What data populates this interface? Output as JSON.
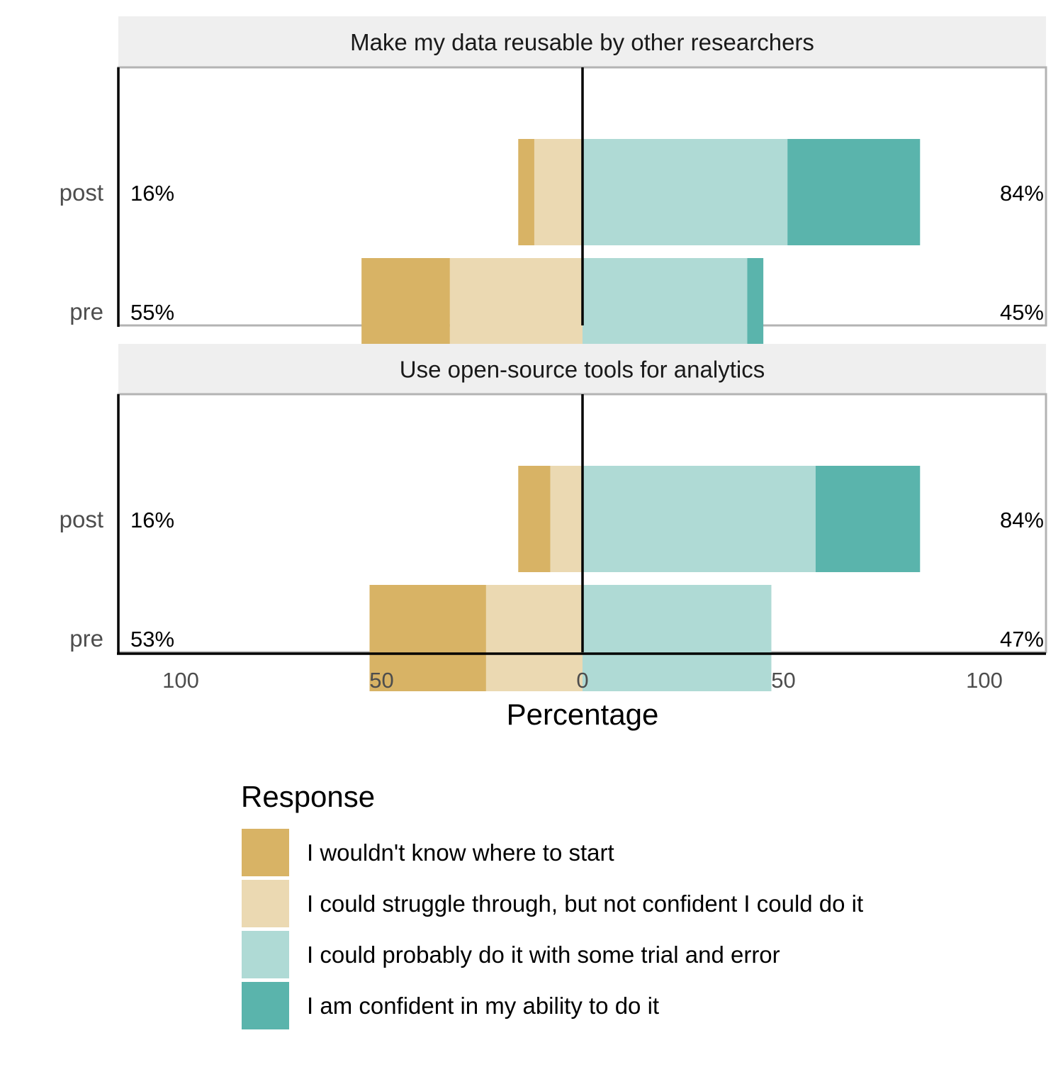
{
  "chart_data": {
    "type": "bar",
    "orientation": "horizontal",
    "stacking": "diverging",
    "xlabel": "Percentage",
    "x_ticks": [
      "100",
      "50",
      "0",
      "50",
      "100"
    ],
    "xlim": [
      -100,
      100
    ],
    "legend": {
      "title": "Response",
      "position": "bottom",
      "entries": [
        {
          "label": "I wouldn't know where to start",
          "color": "#D8B365"
        },
        {
          "label": "I could struggle through, but not confident I could do it",
          "color": "#EBD9B2"
        },
        {
          "label": "I could probably do it with some trial and error",
          "color": "#AFDAD5"
        },
        {
          "label": "I am confident in my ability to do it",
          "color": "#5AB4AC"
        }
      ]
    },
    "panels": [
      {
        "title": "Make my data reusable by other researchers",
        "rows": [
          {
            "label": "post",
            "values": [
              4,
              12,
              51,
              33
            ],
            "low_label": "16%",
            "high_label": "84%"
          },
          {
            "label": "pre",
            "values": [
              22,
              33,
              41,
              4
            ],
            "low_label": "55%",
            "high_label": "45%"
          }
        ]
      },
      {
        "title": "Use open-source tools for analytics",
        "rows": [
          {
            "label": "post",
            "values": [
              8,
              8,
              58,
              26
            ],
            "low_label": "16%",
            "high_label": "84%"
          },
          {
            "label": "pre",
            "values": [
              29,
              24,
              47,
              0
            ],
            "low_label": "53%",
            "high_label": "47%"
          }
        ]
      }
    ]
  }
}
